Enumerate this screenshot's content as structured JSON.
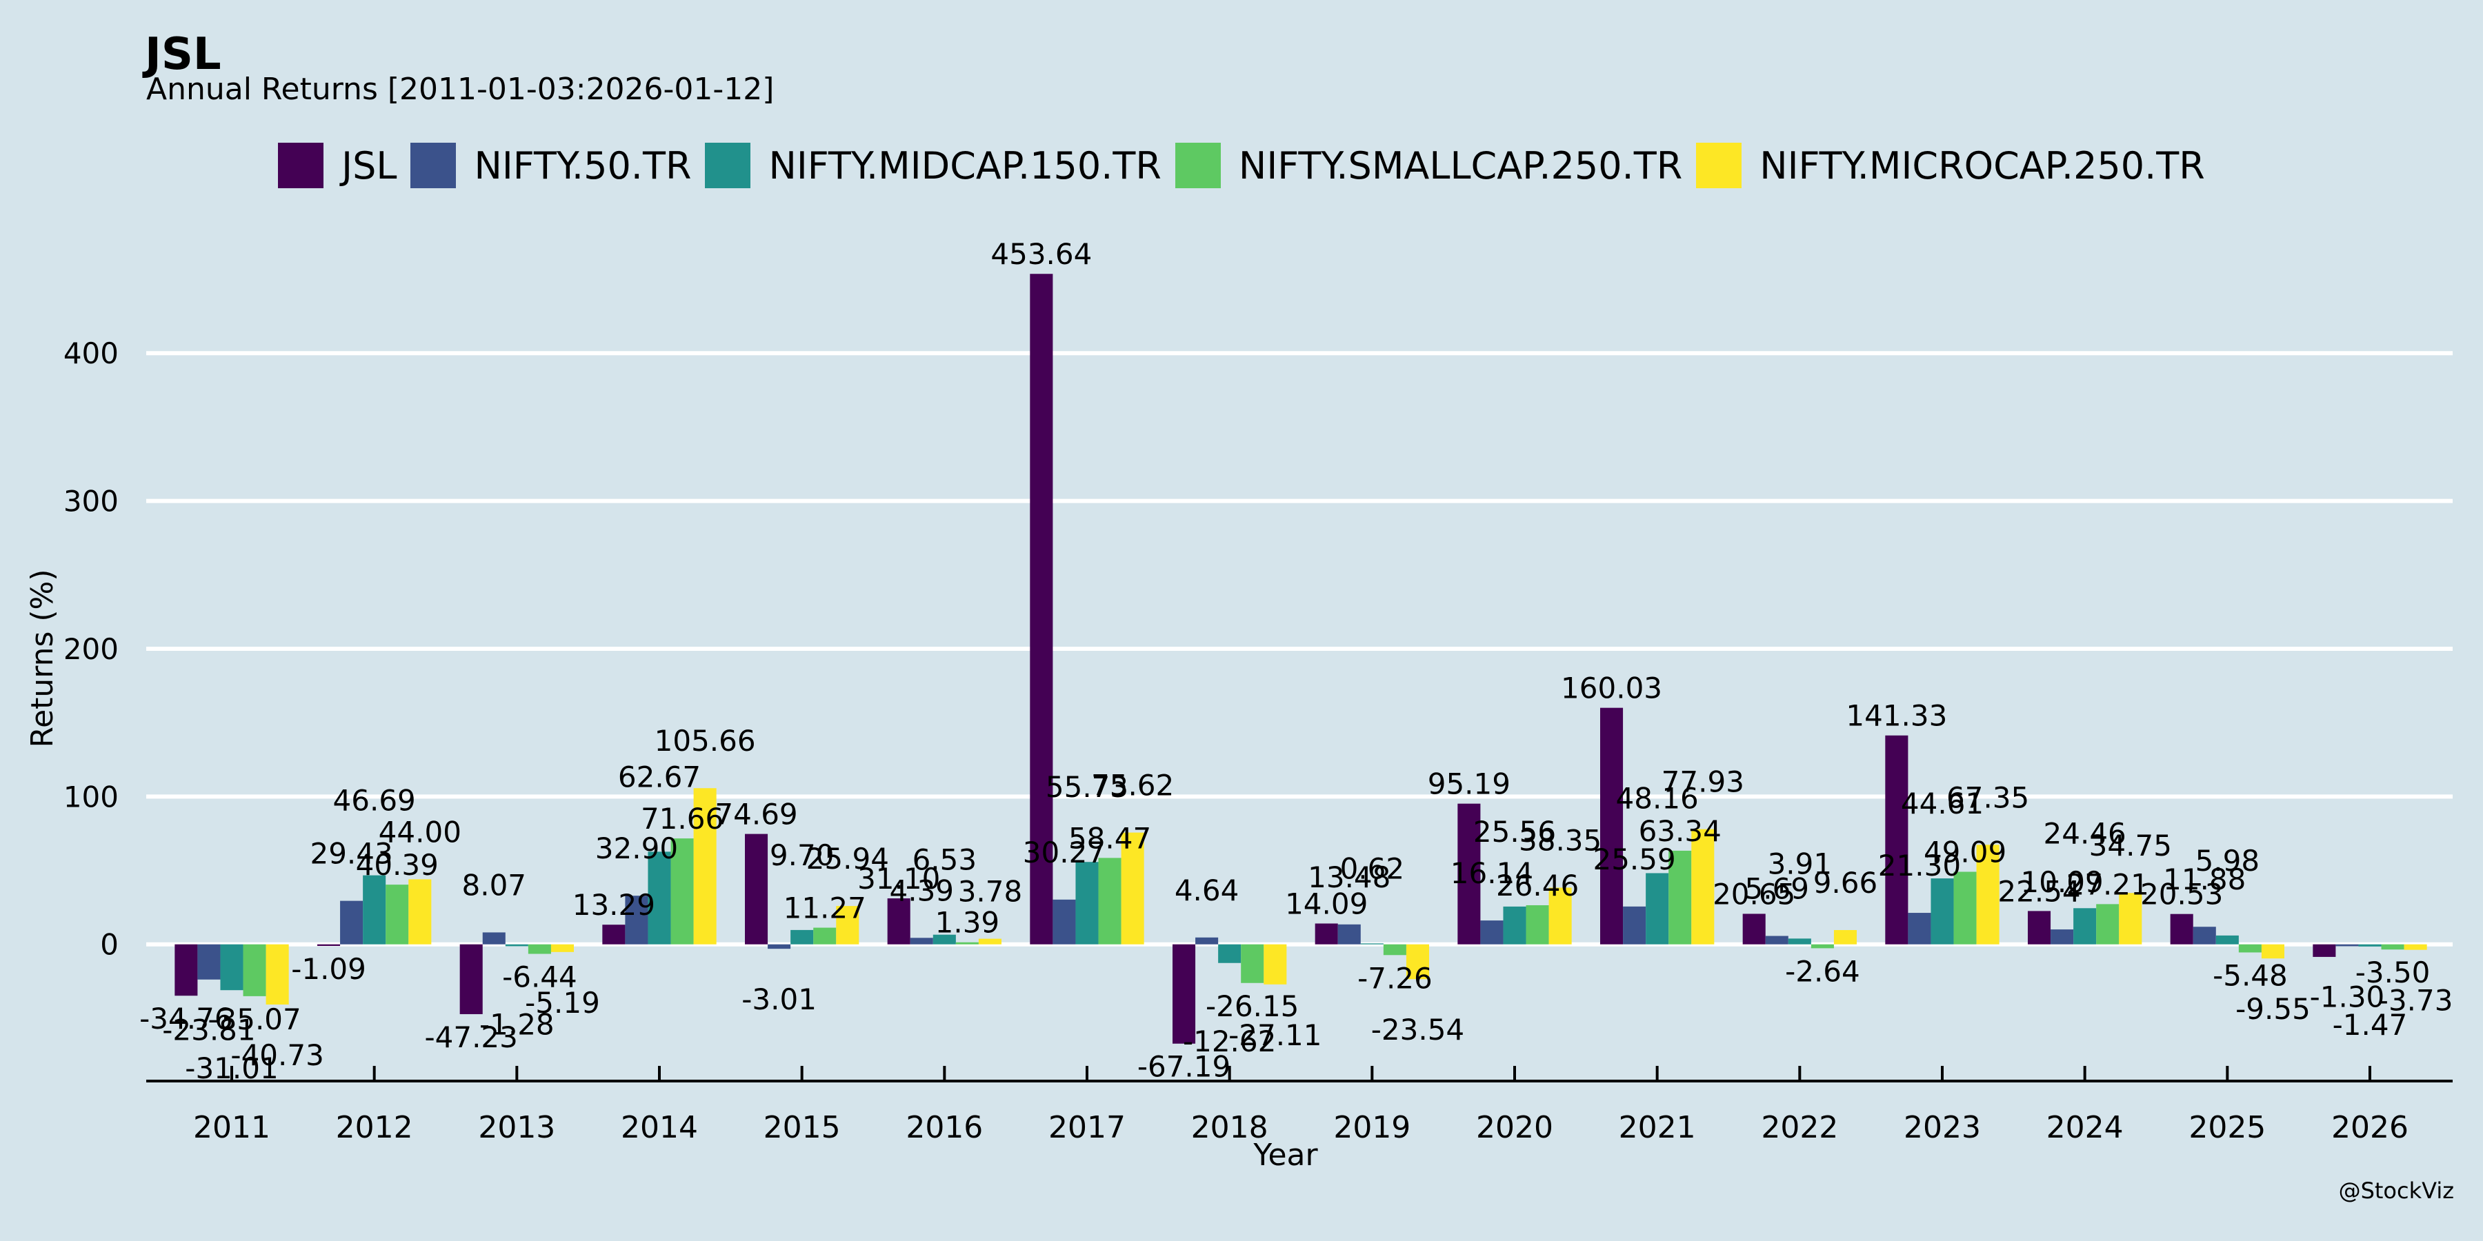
{
  "header": {
    "title": "JSL",
    "subtitle": "Annual Returns [2011-01-03:2026-01-12]",
    "watermark": "@StockViz"
  },
  "chart_data": {
    "type": "bar",
    "title": "JSL",
    "subtitle": "Annual Returns [2011-01-03:2026-01-12]",
    "xlabel": "Year",
    "ylabel": "Returns (%)",
    "ylim": [
      -92.5,
      499
    ],
    "yticks": [
      0,
      100,
      200,
      300,
      400
    ],
    "grid": true,
    "legend_position": "top-center",
    "categories": [
      "2011",
      "2012",
      "2013",
      "2014",
      "2015",
      "2016",
      "2017",
      "2018",
      "2019",
      "2020",
      "2021",
      "2022",
      "2023",
      "2024",
      "2025",
      "2026"
    ],
    "series": [
      {
        "name": "JSL",
        "color": "#440154",
        "values": [
          -34.76,
          -1.09,
          -47.23,
          13.29,
          74.69,
          31.1,
          453.64,
          -67.19,
          14.09,
          95.19,
          160.03,
          20.65,
          141.33,
          22.54,
          20.53,
          -8.5
        ]
      },
      {
        "name": "NIFTY.50.TR",
        "color": "#3b528b",
        "values": [
          -23.81,
          29.43,
          8.07,
          32.9,
          -3.01,
          4.39,
          30.27,
          4.64,
          13.48,
          16.14,
          25.59,
          5.69,
          21.3,
          10.09,
          11.88,
          -1.3
        ]
      },
      {
        "name": "NIFTY.MIDCAP.150.TR",
        "color": "#21918c",
        "values": [
          -31.01,
          46.69,
          -1.28,
          62.67,
          9.7,
          6.53,
          55.73,
          -12.62,
          0.62,
          25.56,
          48.16,
          3.91,
          44.61,
          24.46,
          5.98,
          -1.47
        ]
      },
      {
        "name": "NIFTY.SMALLCAP.250.TR",
        "color": "#5ec962",
        "values": [
          -35.07,
          40.39,
          -6.44,
          71.66,
          11.27,
          1.39,
          58.47,
          -26.15,
          -7.26,
          26.46,
          63.34,
          -2.64,
          49.09,
          27.21,
          -5.48,
          -3.5
        ]
      },
      {
        "name": "NIFTY.MICROCAP.250.TR",
        "color": "#fde725",
        "values": [
          -40.73,
          44.0,
          -5.19,
          105.66,
          25.94,
          3.78,
          75.62,
          -27.11,
          -23.54,
          38.35,
          77.93,
          9.66,
          67.35,
          34.75,
          -9.55,
          -3.73
        ]
      }
    ],
    "annotations": [
      [
        "-34.76",
        "-1.09",
        "-47.23",
        "13.29",
        "74.69",
        "31.10",
        "453.64",
        "-67.19",
        "14.09",
        "95.19",
        "160.03",
        "20.65",
        "141.33",
        "22.54",
        "20.53",
        ""
      ],
      [
        "-23.81",
        "29.43",
        "8.07",
        "32.90",
        "-3.01",
        "4.39",
        "30.27",
        "4.64",
        "13.48",
        "16.14",
        "25.59",
        "5.69",
        "21.30",
        "10.09",
        "11.88",
        "-1.30"
      ],
      [
        "-31.01",
        "46.69",
        "-1.28",
        "62.67",
        "9.70",
        "6.53",
        "55.73",
        "-12.62",
        "0.62",
        "25.56",
        "48.16",
        "3.91",
        "44.61",
        "24.46",
        "5.98",
        "-1.47"
      ],
      [
        "-35.07",
        "40.39",
        "-6.44",
        "71.66",
        "11.27",
        "1.39",
        "58.47",
        "-26.15",
        "-7.26",
        "26.46",
        "63.34",
        "-2.64",
        "49.09",
        "27.21",
        "-5.48",
        "-3.50"
      ],
      [
        "-40.73",
        "44.00",
        "-5.19",
        "105.66",
        "25.94",
        "3.78",
        "75.62",
        "-27.11",
        "-23.54",
        "38.35",
        "77.93",
        "9.66",
        "67.35",
        "34.75",
        "-9.55",
        "-3.73"
      ]
    ]
  }
}
